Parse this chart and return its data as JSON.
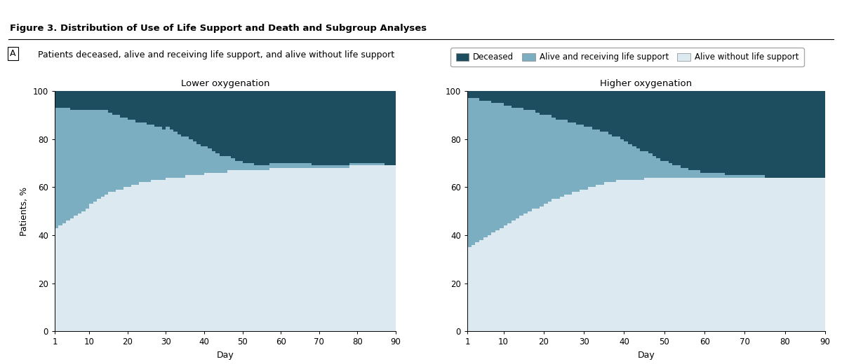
{
  "title": "Figure 3. Distribution of Use of Life Support and Death and Subgroup Analyses",
  "panel_label": "A",
  "panel_subtitle": "Patients deceased, alive and receiving life support, and alive without life support",
  "left_title": "Lower oxygenation",
  "right_title": "Higher oxygenation",
  "xlabel": "Day",
  "ylabel": "Patients, %",
  "color_deceased": "#1d4e5f",
  "color_alive_support": "#7aaec0",
  "color_alive_no_support": "#dce9f0",
  "bg_color": "#f0f5f8",
  "legend_labels": [
    "Deceased",
    "Alive and receiving life support",
    "Alive without life support"
  ],
  "days": [
    1,
    2,
    3,
    4,
    5,
    6,
    7,
    8,
    9,
    10,
    11,
    12,
    13,
    14,
    15,
    16,
    17,
    18,
    19,
    20,
    21,
    22,
    23,
    24,
    25,
    26,
    27,
    28,
    29,
    30,
    31,
    32,
    33,
    34,
    35,
    36,
    37,
    38,
    39,
    40,
    41,
    42,
    43,
    44,
    45,
    46,
    47,
    48,
    49,
    50,
    51,
    52,
    53,
    54,
    55,
    56,
    57,
    58,
    59,
    60,
    61,
    62,
    63,
    64,
    65,
    66,
    67,
    68,
    69,
    70,
    71,
    72,
    73,
    74,
    75,
    76,
    77,
    78,
    79,
    80,
    81,
    82,
    83,
    84,
    85,
    86,
    87,
    88,
    89,
    90
  ],
  "lower_alive_no_support": [
    43,
    44,
    45,
    46,
    47,
    48,
    49,
    50,
    51,
    53,
    54,
    55,
    56,
    57,
    58,
    58,
    59,
    59,
    60,
    60,
    61,
    61,
    62,
    62,
    62,
    63,
    63,
    63,
    63,
    64,
    64,
    64,
    64,
    64,
    65,
    65,
    65,
    65,
    65,
    66,
    66,
    66,
    66,
    66,
    66,
    67,
    67,
    67,
    67,
    67,
    67,
    67,
    67,
    67,
    67,
    67,
    68,
    68,
    68,
    68,
    68,
    68,
    68,
    68,
    68,
    68,
    68,
    68,
    68,
    68,
    68,
    68,
    68,
    68,
    68,
    68,
    68,
    69,
    69,
    69,
    69,
    69,
    69,
    69,
    69,
    69,
    69,
    69,
    69,
    69
  ],
  "lower_alive_support": [
    50,
    49,
    48,
    47,
    45,
    44,
    43,
    42,
    41,
    39,
    38,
    37,
    36,
    35,
    33,
    32,
    31,
    30,
    29,
    28,
    27,
    26,
    25,
    25,
    24,
    23,
    22,
    22,
    21,
    21,
    20,
    19,
    18,
    17,
    16,
    15,
    14,
    13,
    12,
    11,
    10,
    9,
    8,
    7,
    7,
    6,
    5,
    4,
    4,
    3,
    3,
    3,
    2,
    2,
    2,
    2,
    2,
    2,
    2,
    2,
    2,
    2,
    2,
    2,
    2,
    2,
    2,
    1,
    1,
    1,
    1,
    1,
    1,
    1,
    1,
    1,
    1,
    1,
    1,
    1,
    1,
    1,
    1,
    1,
    1,
    1,
    0,
    0,
    0,
    0
  ],
  "lower_deceased": [
    7,
    7,
    7,
    7,
    8,
    8,
    8,
    8,
    8,
    8,
    8,
    8,
    8,
    8,
    9,
    10,
    10,
    11,
    11,
    12,
    12,
    13,
    13,
    13,
    14,
    14,
    15,
    15,
    16,
    15,
    16,
    17,
    18,
    19,
    19,
    20,
    21,
    22,
    23,
    23,
    24,
    25,
    26,
    27,
    27,
    27,
    28,
    29,
    29,
    30,
    30,
    30,
    31,
    31,
    31,
    31,
    30,
    30,
    30,
    30,
    30,
    30,
    30,
    30,
    30,
    30,
    30,
    31,
    31,
    31,
    31,
    31,
    31,
    31,
    31,
    31,
    31,
    30,
    30,
    30,
    30,
    30,
    30,
    30,
    30,
    30,
    31,
    31,
    31,
    31
  ],
  "higher_alive_no_support": [
    35,
    36,
    37,
    38,
    39,
    40,
    41,
    42,
    43,
    44,
    45,
    46,
    47,
    48,
    49,
    50,
    51,
    51,
    52,
    53,
    54,
    55,
    55,
    56,
    57,
    57,
    58,
    58,
    59,
    59,
    60,
    60,
    61,
    61,
    62,
    62,
    62,
    63,
    63,
    63,
    63,
    63,
    63,
    63,
    64,
    64,
    64,
    64,
    64,
    64,
    64,
    64,
    64,
    64,
    64,
    64,
    64,
    64,
    64,
    64,
    64,
    64,
    64,
    64,
    64,
    64,
    64,
    64,
    64,
    64,
    64,
    64,
    64,
    64,
    64,
    64,
    64,
    64,
    64,
    64,
    64,
    64,
    64,
    64,
    64,
    64,
    64,
    64,
    64,
    64
  ],
  "higher_alive_support": [
    62,
    61,
    60,
    58,
    57,
    56,
    54,
    53,
    52,
    50,
    49,
    47,
    46,
    45,
    43,
    42,
    41,
    40,
    38,
    37,
    36,
    34,
    33,
    32,
    31,
    30,
    29,
    28,
    27,
    26,
    25,
    24,
    23,
    22,
    21,
    20,
    19,
    18,
    17,
    16,
    15,
    14,
    13,
    12,
    11,
    10,
    9,
    8,
    7,
    7,
    6,
    5,
    5,
    4,
    4,
    3,
    3,
    3,
    2,
    2,
    2,
    2,
    2,
    2,
    1,
    1,
    1,
    1,
    1,
    1,
    1,
    1,
    1,
    1,
    0,
    0,
    0,
    0,
    0,
    0,
    0,
    0,
    0,
    0,
    0,
    0,
    0,
    0,
    0,
    0
  ],
  "higher_deceased": [
    3,
    3,
    3,
    4,
    4,
    4,
    5,
    5,
    5,
    6,
    6,
    7,
    7,
    7,
    8,
    8,
    8,
    9,
    10,
    10,
    10,
    11,
    12,
    12,
    12,
    13,
    13,
    14,
    14,
    15,
    15,
    16,
    16,
    17,
    17,
    18,
    19,
    19,
    20,
    21,
    22,
    23,
    24,
    25,
    25,
    26,
    27,
    28,
    29,
    29,
    30,
    31,
    31,
    32,
    32,
    33,
    33,
    33,
    34,
    34,
    34,
    34,
    34,
    34,
    35,
    35,
    35,
    35,
    35,
    35,
    35,
    35,
    35,
    35,
    36,
    36,
    36,
    36,
    36,
    36,
    36,
    36,
    36,
    36,
    36,
    36,
    36,
    36,
    36,
    36
  ],
  "red_bar_color": "#cc0000",
  "title_fontsize": 9.5,
  "subtitle_fontsize": 9,
  "axis_fontsize": 9,
  "tick_fontsize": 8.5,
  "legend_fontsize": 8.5
}
